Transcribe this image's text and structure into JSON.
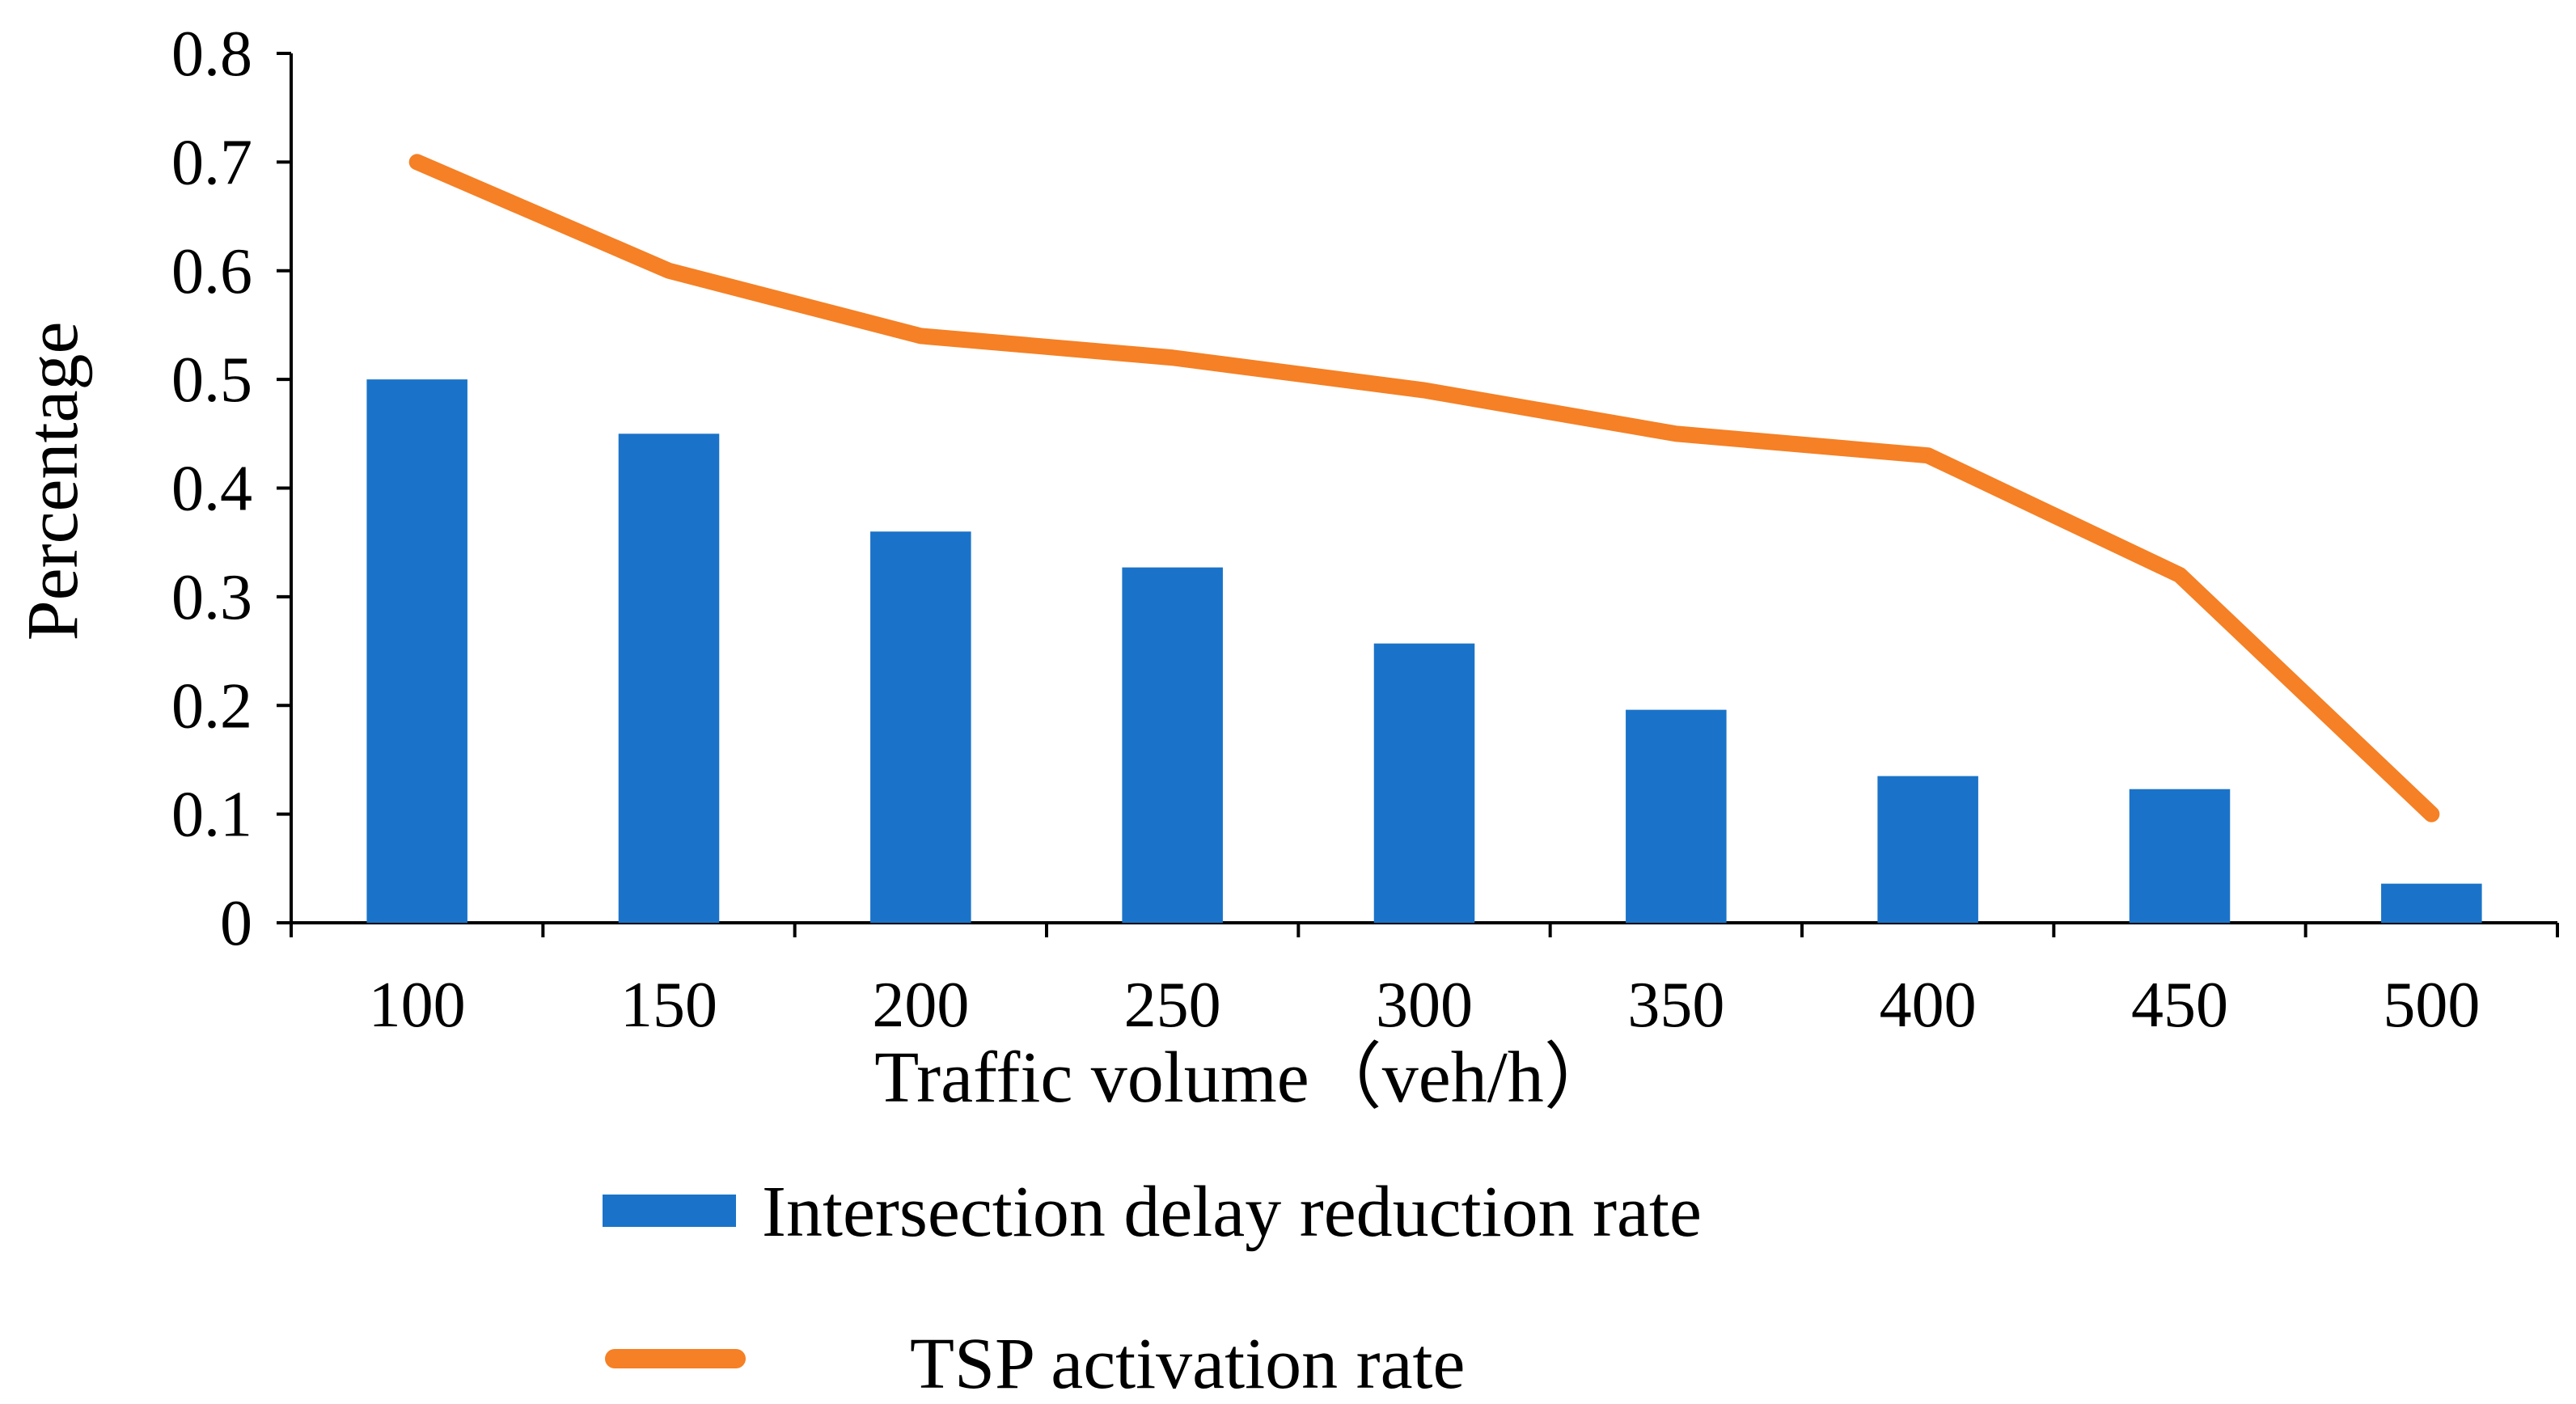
{
  "chart_data": {
    "type": "bar",
    "title": "",
    "xlabel": "Traffic volume（veh/h）",
    "ylabel": "Percentage",
    "categories": [
      "100",
      "150",
      "200",
      "250",
      "300",
      "350",
      "400",
      "450",
      "500"
    ],
    "ylim": [
      0,
      0.8
    ],
    "yticks": [
      "0",
      "0.1",
      "0.2",
      "0.3",
      "0.4",
      "0.5",
      "0.6",
      "0.7",
      "0.8"
    ],
    "grid": false,
    "legend_position": "bottom",
    "series": [
      {
        "name": "Intersection delay reduction rate",
        "type": "bar",
        "color": "#1a73c8",
        "values": [
          0.5,
          0.45,
          0.36,
          0.327,
          0.257,
          0.196,
          0.135,
          0.123,
          0.036
        ]
      },
      {
        "name": "TSP activation rate",
        "type": "line",
        "color": "#f58025",
        "values": [
          0.7,
          0.6,
          0.54,
          0.52,
          0.49,
          0.45,
          0.43,
          0.32,
          0.1
        ]
      }
    ]
  }
}
